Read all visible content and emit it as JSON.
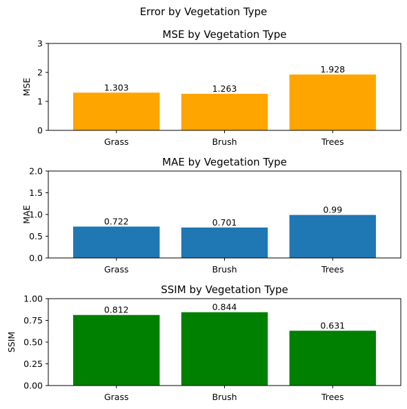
{
  "figure_title": "Error by Vegetation Type",
  "chart_data": [
    {
      "type": "bar",
      "title": "MSE by Vegetation Type",
      "xlabel": "",
      "ylabel": "MSE",
      "categories": [
        "Grass",
        "Brush",
        "Trees"
      ],
      "values": [
        1.303,
        1.263,
        1.928
      ],
      "value_labels": [
        "1.303",
        "1.263",
        "1.928"
      ],
      "ylim": [
        0,
        3
      ],
      "yticks": [
        0,
        1,
        2,
        3
      ],
      "ytick_labels": [
        "0",
        "1",
        "2",
        "3"
      ],
      "color": "#ffa500",
      "grid": false
    },
    {
      "type": "bar",
      "title": "MAE by Vegetation Type",
      "xlabel": "",
      "ylabel": "MAE",
      "categories": [
        "Grass",
        "Brush",
        "Trees"
      ],
      "values": [
        0.722,
        0.701,
        0.99
      ],
      "value_labels": [
        "0.722",
        "0.701",
        "0.99"
      ],
      "ylim": [
        0,
        2
      ],
      "yticks": [
        0,
        0.5,
        1,
        1.5,
        2
      ],
      "ytick_labels": [
        "0.0",
        "0.5",
        "1.0",
        "1.5",
        "2.0"
      ],
      "color": "#1f77b4",
      "grid": false
    },
    {
      "type": "bar",
      "title": "SSIM by Vegetation Type",
      "xlabel": "",
      "ylabel": "SSIM",
      "categories": [
        "Grass",
        "Brush",
        "Trees"
      ],
      "values": [
        0.812,
        0.844,
        0.631
      ],
      "value_labels": [
        "0.812",
        "0.844",
        "0.631"
      ],
      "ylim": [
        0,
        1
      ],
      "yticks": [
        0,
        0.25,
        0.5,
        0.75,
        1
      ],
      "ytick_labels": [
        "0.00",
        "0.25",
        "0.50",
        "0.75",
        "1.00"
      ],
      "color": "#008000",
      "grid": false
    }
  ]
}
